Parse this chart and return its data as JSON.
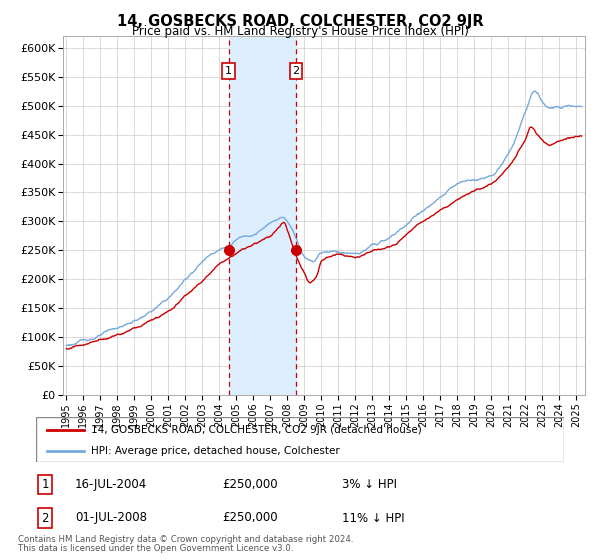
{
  "title": "14, GOSBECKS ROAD, COLCHESTER, CO2 9JR",
  "subtitle": "Price paid vs. HM Land Registry's House Price Index (HPI)",
  "sale1_date_num": 2004.54,
  "sale1_price": 250000,
  "sale1_label": "1",
  "sale1_info": "16-JUL-2004",
  "sale1_pct": "3%",
  "sale2_date_num": 2008.5,
  "sale2_price": 250000,
  "sale2_label": "2",
  "sale2_info": "01-JUL-2008",
  "sale2_pct": "11%",
  "hpi_line_color": "#77aadd",
  "price_line_color": "#cc0000",
  "sale_dot_color": "#cc0000",
  "shade_color": "#ddeeff",
  "vline_color": "#cc0000",
  "grid_color": "#cccccc",
  "legend1": "14, GOSBECKS ROAD, COLCHESTER, CO2 9JR (detached house)",
  "legend2": "HPI: Average price, detached house, Colchester",
  "footnote1": "Contains HM Land Registry data © Crown copyright and database right 2024.",
  "footnote2": "This data is licensed under the Open Government Licence v3.0.",
  "ylim": [
    0,
    620000
  ],
  "xlim_start": 1994.8,
  "xlim_end": 2025.5,
  "yticks": [
    0,
    50000,
    100000,
    150000,
    200000,
    250000,
    300000,
    350000,
    400000,
    450000,
    500000,
    550000,
    600000
  ],
  "ytick_labels": [
    "£0",
    "£50K",
    "£100K",
    "£150K",
    "£200K",
    "£250K",
    "£300K",
    "£350K",
    "£400K",
    "£450K",
    "£500K",
    "£550K",
    "£600K"
  ]
}
